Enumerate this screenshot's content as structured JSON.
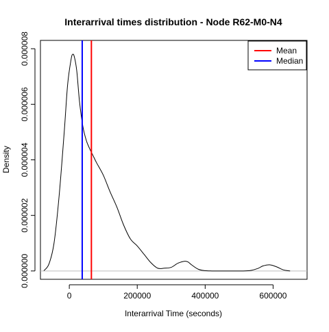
{
  "chart_data": {
    "type": "line",
    "title": "Interarrival times distribution - Node R62-M0-N4",
    "xlabel": "Interarrival Time (seconds)",
    "ylabel": "Density",
    "xlim": [
      -85000,
      700000
    ],
    "ylim": [
      -3e-07,
      8.3e-06
    ],
    "x_ticks": [
      0,
      200000,
      400000,
      600000
    ],
    "x_tick_labels": [
      "0",
      "200000",
      "400000",
      "600000"
    ],
    "y_ticks": [
      0,
      2e-06,
      4e-06,
      6e-06,
      8e-06
    ],
    "y_tick_labels": [
      "0.000000",
      "0.000002",
      "0.000004",
      "0.000006",
      "0.000008"
    ],
    "grid": false,
    "baseline": {
      "y": 0,
      "color": "#bebebe"
    },
    "series": [
      {
        "color": "#000000",
        "x": [
          -75000,
          -60000,
          -45000,
          -30000,
          -15000,
          -5000,
          5000,
          10000,
          15000,
          22000,
          30000,
          40000,
          50000,
          60000,
          70000,
          80000,
          100000,
          120000,
          140000,
          160000,
          180000,
          200000,
          220000,
          240000,
          260000,
          280000,
          300000,
          320000,
          340000,
          350000,
          360000,
          380000,
          400000,
          420000,
          450000,
          500000,
          530000,
          555000,
          570000,
          590000,
          610000,
          630000,
          650000
        ],
        "y": [
          1e-08,
          2.5e-07,
          1e-06,
          2.7e-06,
          5e-06,
          6.7e-06,
          7.6e-06,
          7.8e-06,
          7.7e-06,
          7.2e-06,
          6.1e-06,
          5.2e-06,
          4.7e-06,
          4.4e-06,
          4.15e-06,
          3.9e-06,
          3.45e-06,
          2.85e-06,
          2.3e-06,
          1.65e-06,
          1.15e-06,
          9e-07,
          6e-07,
          3e-07,
          1e-07,
          1e-07,
          1.3e-07,
          2.8e-07,
          3.5e-07,
          3.2e-07,
          2.2e-07,
          6e-08,
          1e-08,
          0,
          0,
          0,
          1e-08,
          9e-08,
          1.8e-07,
          2.2e-07,
          1.5e-07,
          4e-08,
          0
        ]
      }
    ],
    "vlines": [
      {
        "name": "Mean",
        "x": 65000,
        "color": "#ff0000"
      },
      {
        "name": "Median",
        "x": 38000,
        "color": "#0000ff"
      }
    ],
    "legend": {
      "position": "top-right",
      "items": [
        {
          "label": "Mean",
          "color": "#ff0000"
        },
        {
          "label": "Median",
          "color": "#0000ff"
        }
      ]
    }
  }
}
